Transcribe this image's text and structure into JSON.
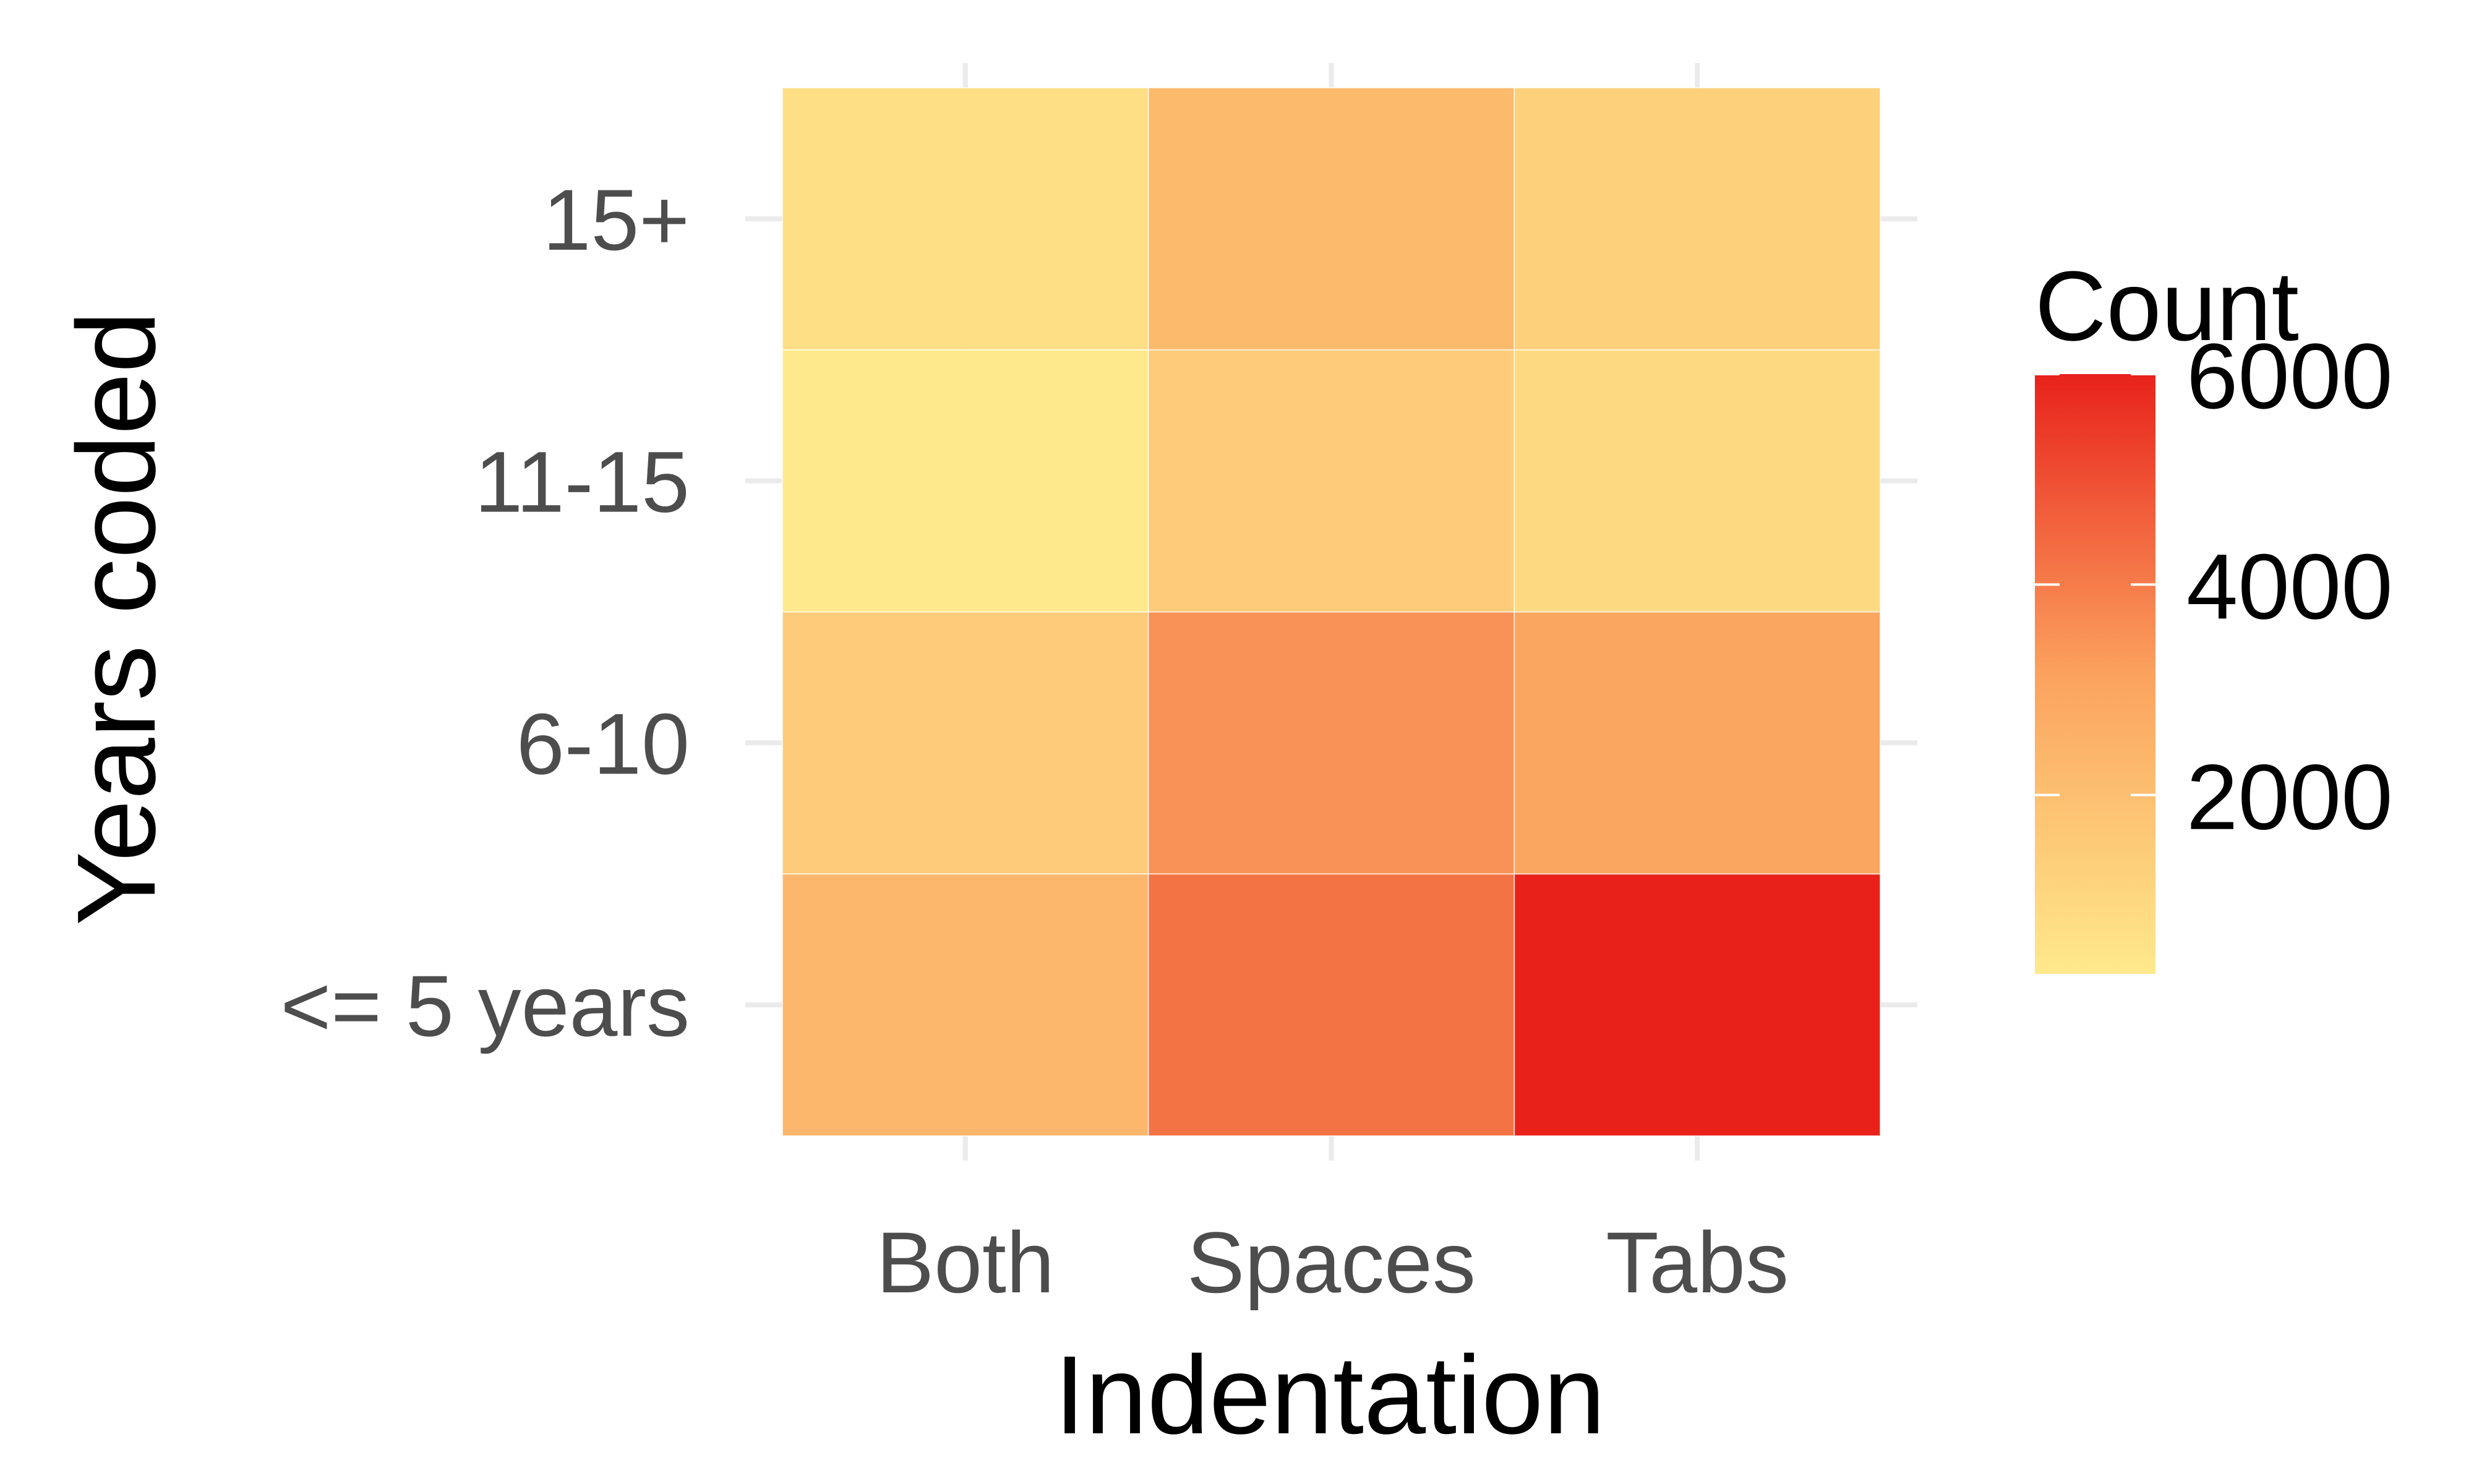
{
  "chart_data": {
    "type": "heatmap",
    "xlabel": "Indentation",
    "ylabel": "Years coded",
    "x_categories": [
      "Both",
      "Spaces",
      "Tabs"
    ],
    "y_categories": [
      "<= 5 years",
      "6-10",
      "11-15",
      "15+"
    ],
    "values": [
      [
        2300,
        4200,
        6000
      ],
      [
        1500,
        3500,
        3000
      ],
      [
        300,
        1500,
        900
      ],
      [
        700,
        2200,
        1300
      ]
    ],
    "legend": {
      "title": "Count",
      "ticks": [
        2000,
        4000,
        6000
      ],
      "tick_labels": [
        "2000",
        "4000",
        "6000"
      ],
      "range": [
        300,
        6000
      ],
      "position": "right"
    },
    "color_scale": {
      "low": "#fee98c",
      "mid": "#fba25e",
      "high": "#e8221b"
    },
    "grid": true
  }
}
